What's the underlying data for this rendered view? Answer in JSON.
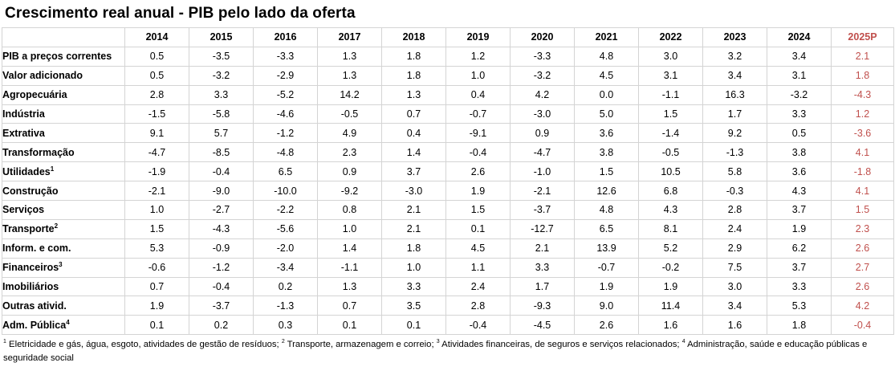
{
  "title": "Crescimento real anual - PIB pelo lado da oferta",
  "colors": {
    "projection": "#c0504d",
    "grid": "#d4d4d4"
  },
  "table": {
    "years": [
      "2014",
      "2015",
      "2016",
      "2017",
      "2018",
      "2019",
      "2020",
      "2021",
      "2022",
      "2023",
      "2024",
      "2025P"
    ],
    "rows": [
      {
        "label": "PIB a preços correntes",
        "sup": "",
        "values": [
          "0.5",
          "-3.5",
          "-3.3",
          "1.3",
          "1.8",
          "1.2",
          "-3.3",
          "4.8",
          "3.0",
          "3.2",
          "3.4",
          "2.1"
        ]
      },
      {
        "label": "Valor adicionado",
        "sup": "",
        "values": [
          "0.5",
          "-3.2",
          "-2.9",
          "1.3",
          "1.8",
          "1.0",
          "-3.2",
          "4.5",
          "3.1",
          "3.4",
          "3.1",
          "1.8"
        ]
      },
      {
        "label": "Agropecuária",
        "sup": "",
        "values": [
          "2.8",
          "3.3",
          "-5.2",
          "14.2",
          "1.3",
          "0.4",
          "4.2",
          "0.0",
          "-1.1",
          "16.3",
          "-3.2",
          "-4.3"
        ]
      },
      {
        "label": "Indústria",
        "sup": "",
        "values": [
          "-1.5",
          "-5.8",
          "-4.6",
          "-0.5",
          "0.7",
          "-0.7",
          "-3.0",
          "5.0",
          "1.5",
          "1.7",
          "3.3",
          "1.2"
        ]
      },
      {
        "label": "Extrativa",
        "sup": "",
        "values": [
          "9.1",
          "5.7",
          "-1.2",
          "4.9",
          "0.4",
          "-9.1",
          "0.9",
          "3.6",
          "-1.4",
          "9.2",
          "0.5",
          "-3.6"
        ]
      },
      {
        "label": "Transformação",
        "sup": "",
        "values": [
          "-4.7",
          "-8.5",
          "-4.8",
          "2.3",
          "1.4",
          "-0.4",
          "-4.7",
          "3.8",
          "-0.5",
          "-1.3",
          "3.8",
          "4.1"
        ]
      },
      {
        "label": "Utilidades",
        "sup": "1",
        "values": [
          "-1.9",
          "-0.4",
          "6.5",
          "0.9",
          "3.7",
          "2.6",
          "-1.0",
          "1.5",
          "10.5",
          "5.8",
          "3.6",
          "-1.8"
        ]
      },
      {
        "label": "Construção",
        "sup": "",
        "values": [
          "-2.1",
          "-9.0",
          "-10.0",
          "-9.2",
          "-3.0",
          "1.9",
          "-2.1",
          "12.6",
          "6.8",
          "-0.3",
          "4.3",
          "4.1"
        ]
      },
      {
        "label": "Serviços",
        "sup": "",
        "values": [
          "1.0",
          "-2.7",
          "-2.2",
          "0.8",
          "2.1",
          "1.5",
          "-3.7",
          "4.8",
          "4.3",
          "2.8",
          "3.7",
          "1.5"
        ]
      },
      {
        "label": "Transporte",
        "sup": "2",
        "values": [
          "1.5",
          "-4.3",
          "-5.6",
          "1.0",
          "2.1",
          "0.1",
          "-12.7",
          "6.5",
          "8.1",
          "2.4",
          "1.9",
          "2.3"
        ]
      },
      {
        "label": "Inform. e com.",
        "sup": "",
        "values": [
          "5.3",
          "-0.9",
          "-2.0",
          "1.4",
          "1.8",
          "4.5",
          "2.1",
          "13.9",
          "5.2",
          "2.9",
          "6.2",
          "2.6"
        ]
      },
      {
        "label": "Financeiros",
        "sup": "3",
        "values": [
          "-0.6",
          "-1.2",
          "-3.4",
          "-1.1",
          "1.0",
          "1.1",
          "3.3",
          "-0.7",
          "-0.2",
          "7.5",
          "3.7",
          "2.7"
        ]
      },
      {
        "label": "Imobiliários",
        "sup": "",
        "values": [
          "0.7",
          "-0.4",
          "0.2",
          "1.3",
          "3.3",
          "2.4",
          "1.7",
          "1.9",
          "1.9",
          "3.0",
          "3.3",
          "2.6"
        ]
      },
      {
        "label": "Outras ativid.",
        "sup": "",
        "values": [
          "1.9",
          "-3.7",
          "-1.3",
          "0.7",
          "3.5",
          "2.8",
          "-9.3",
          "9.0",
          "11.4",
          "3.4",
          "5.3",
          "4.2"
        ]
      },
      {
        "label": "Adm. Pública",
        "sup": "4",
        "values": [
          "0.1",
          "0.2",
          "0.3",
          "0.1",
          "0.1",
          "-0.4",
          "-4.5",
          "2.6",
          "1.6",
          "1.6",
          "1.8",
          "-0.4"
        ]
      }
    ]
  },
  "footnotes": [
    {
      "sup": "1",
      "text": "Eletricidade e gás, água, esgoto, atividades de gestão de resíduos;"
    },
    {
      "sup": "2",
      "text": "Transporte, armazenagem e correio;"
    },
    {
      "sup": "3",
      "text": "Atividades financeiras, de seguros e serviços relacionados;"
    },
    {
      "sup": "4",
      "text": "Administração, saúde e educação públicas e seguridade social"
    }
  ]
}
